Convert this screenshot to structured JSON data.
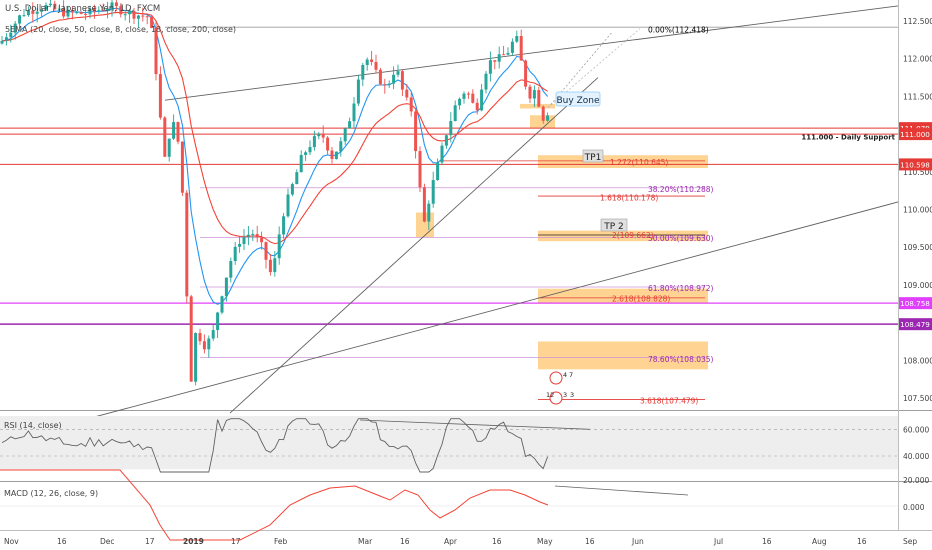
{
  "header": {
    "symbol_title": "U.S. Dollar / Japanese Yen, 1D, FXCM",
    "indicator_line": "5EMA (20, close, 50, close, 8, close, 18, close, 200, close)"
  },
  "colors": {
    "up_candle": "#26a69a",
    "down_candle": "#ef5350",
    "ema_fast": "#2196f3",
    "ema_slow": "#f44336",
    "fib_red": "#e53935",
    "fib_purple": "#9c27b0",
    "magenta": "#e040fb",
    "zone_orange": "#ffcc80",
    "trend": "#555555"
  },
  "chart_data": [
    {
      "type": "candlestick",
      "title": "U.S. Dollar / Japanese Yen, 1D, FXCM",
      "y_axis": {
        "ylim": [
          107.3,
          112.7
        ],
        "ticks": [
          107.5,
          108.0,
          108.5,
          109.0,
          109.5,
          110.0,
          110.5,
          111.0,
          111.5,
          112.0,
          112.5
        ],
        "tick_labels": [
          "107.500",
          "108.000",
          "108.500",
          "109.000",
          "109.500",
          "110.000",
          "110.500",
          "111.000",
          "111.500",
          "112.000",
          "112.500"
        ],
        "position": "right"
      },
      "x_axis": {
        "labels": [
          "Nov",
          "16",
          "Dec",
          "17",
          "2019",
          "17",
          "Feb",
          "Mar",
          "16",
          "Apr",
          "16",
          "May",
          "16",
          "Jun",
          "Jul",
          "16",
          "Aug",
          "16",
          "Sep"
        ]
      },
      "price_tags": [
        {
          "value": 111.079,
          "label": "111.079",
          "color": "#e53935"
        },
        {
          "value": 111.0,
          "label": "111.000",
          "color": "#e53935"
        },
        {
          "value": 110.598,
          "label": "110.598",
          "color": "#e53935"
        },
        {
          "value": 108.758,
          "label": "108.758",
          "color": "#e040fb"
        },
        {
          "value": 108.479,
          "label": "108.479",
          "color": "#9c27b0"
        }
      ],
      "fib_levels": [
        {
          "label": "0.00%(112.418)",
          "value": 112.418,
          "color": "#000000"
        },
        {
          "label": "1.272(110.645)",
          "value": 110.645,
          "color": "#e53935"
        },
        {
          "label": "38.20%(110.288)",
          "value": 110.288,
          "color": "#9c27b0"
        },
        {
          "label": "1.618(110.178)",
          "value": 110.178,
          "color": "#e53935"
        },
        {
          "label": "2(109.662)",
          "value": 109.662,
          "color": "#e53935"
        },
        {
          "label": "50.00%(109.630)",
          "value": 109.63,
          "color": "#9c27b0"
        },
        {
          "label": "61.80%(108.972)",
          "value": 108.972,
          "color": "#9c27b0"
        },
        {
          "label": "2.618(108.828)",
          "value": 108.828,
          "color": "#e53935"
        },
        {
          "label": "78.60%(108.035)",
          "value": 108.035,
          "color": "#9c27b0"
        },
        {
          "label": "3.618(107.479)",
          "value": 107.479,
          "color": "#e53935"
        }
      ],
      "annotations": {
        "support": "111.000 - Daily Support",
        "buy_zone": "Buy Zone",
        "tp1": "TP1",
        "tp2": "TP 2",
        "event_icons": [
          "4",
          "7",
          "12",
          "3",
          "3"
        ]
      }
    },
    {
      "type": "line",
      "title": "RSI (14, close)",
      "ylim": [
        25,
        70
      ],
      "ticks": [
        20,
        40,
        60
      ],
      "tick_labels": [
        "20.000",
        "40.000",
        "60.000"
      ],
      "band": [
        30,
        70
      ]
    },
    {
      "type": "line",
      "title": "MACD (12, 26, close, 9)",
      "ticks": [
        0
      ],
      "tick_labels": [
        "0.000"
      ]
    }
  ]
}
